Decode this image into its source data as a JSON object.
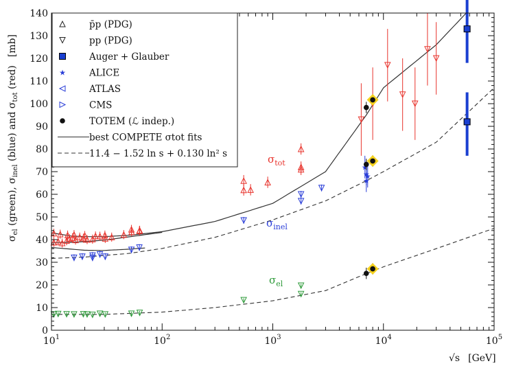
{
  "chart_data": {
    "type": "scatter",
    "title": "",
    "xlabel": "√s  [GeV]",
    "ylabel": "σel (green), σinel (blue) and σtot (red)  [mb]",
    "x_scale": "log",
    "xlim": [
      10,
      100000
    ],
    "ylim": [
      0,
      140
    ],
    "x_ticks": [
      {
        "value": 10,
        "base": "10",
        "exp": "1"
      },
      {
        "value": 100,
        "base": "10",
        "exp": "2"
      },
      {
        "value": 1000,
        "base": "10",
        "exp": "3"
      },
      {
        "value": 10000,
        "base": "10",
        "exp": "4"
      },
      {
        "value": 100000,
        "base": "10",
        "exp": "5"
      }
    ],
    "y_ticks": [
      "0",
      "10",
      "20",
      "30",
      "40",
      "50",
      "60",
      "70",
      "80",
      "90",
      "100",
      "110",
      "120",
      "130",
      "140"
    ],
    "ylabel_parts": {
      "a": "σ",
      "a_sub": "el",
      "b": " (green), σ",
      "b_sub": "inel",
      "c": " (blue) and σ",
      "c_sub": "tot",
      "d": " (red)",
      "unit": "[mb]"
    },
    "xlabel_parts": {
      "sqrt": "√s",
      "unit": "[GeV]"
    },
    "annotations": [
      {
        "id": "tot",
        "symbol": "σ",
        "sub": "tot",
        "color": "#e8332c",
        "x": 1000,
        "y": 75
      },
      {
        "id": "inel",
        "symbol": "σ",
        "sub": "inel",
        "color": "#2a3ed8",
        "x": 1000,
        "y": 46
      },
      {
        "id": "el",
        "symbol": "σ",
        "sub": "el",
        "color": "#2e9a3a",
        "x": 1000,
        "y": 23
      }
    ],
    "legend": [
      {
        "label": "p̄p (PDG)",
        "marker": "triangle-up-open",
        "color": "#222222"
      },
      {
        "label": "pp (PDG)",
        "marker": "triangle-down-open",
        "color": "#222222"
      },
      {
        "label": "Auger + Glauber",
        "marker": "square-filled",
        "color": "#1a3fd1"
      },
      {
        "label": "ALICE",
        "marker": "star",
        "color": "#2a3ed8"
      },
      {
        "label": "ATLAS",
        "marker": "triangle-left-open",
        "color": "#2a3ed8"
      },
      {
        "label": "CMS",
        "marker": "triangle-right-open",
        "color": "#2a3ed8"
      },
      {
        "label": "TOTEM (ℒ indep.)",
        "marker": "circle-filled",
        "color": "#111111"
      },
      {
        "label": "best COMPETE σtot fits",
        "marker": "line-solid",
        "color": "#333333"
      },
      {
        "label": "11.4 − 1.52 ln s + 0.130 ln² s",
        "marker": "line-dashed",
        "color": "#333333"
      }
    ],
    "curves": [
      {
        "name": "COMPETE fit σtot",
        "style": "solid",
        "points": [
          [
            10,
            43
          ],
          [
            15,
            41.6
          ],
          [
            20,
            41.3
          ],
          [
            30,
            41.3
          ],
          [
            50,
            41.9
          ],
          [
            100,
            43.5
          ],
          [
            300,
            48
          ],
          [
            1000,
            56
          ],
          [
            3000,
            70
          ],
          [
            7000,
            95
          ],
          [
            10000,
            107
          ],
          [
            30000,
            126
          ],
          [
            56000,
            140
          ]
        ]
      },
      {
        "name": "COMPETE fit σtot (pp branch)",
        "style": "solid",
        "points": [
          [
            10,
            38.7
          ],
          [
            15,
            38.8
          ],
          [
            20,
            39.1
          ],
          [
            30,
            39.8
          ],
          [
            50,
            41.2
          ],
          [
            100,
            43.2
          ]
        ]
      },
      {
        "name": "σinel fit",
        "style": "dashed",
        "points": [
          [
            10,
            31.7
          ],
          [
            20,
            32.3
          ],
          [
            50,
            33.9
          ],
          [
            100,
            36.1
          ],
          [
            300,
            41
          ],
          [
            1000,
            48.7
          ],
          [
            3000,
            57.1
          ],
          [
            7000,
            66
          ],
          [
            10000,
            70
          ],
          [
            30000,
            83
          ],
          [
            100000,
            107
          ]
        ]
      },
      {
        "name": "COMPETE σinel (low energy)",
        "style": "solid",
        "points": [
          [
            10,
            36.5
          ],
          [
            20,
            35.3
          ],
          [
            30,
            35.2
          ],
          [
            50,
            35.8
          ],
          [
            70,
            36.3
          ]
        ]
      },
      {
        "name": "σel fit",
        "style": "dashed",
        "points": [
          [
            10,
            7
          ],
          [
            30,
            7
          ],
          [
            100,
            8
          ],
          [
            300,
            10
          ],
          [
            1000,
            13
          ],
          [
            3000,
            17.5
          ],
          [
            7000,
            25
          ],
          [
            10000,
            28
          ],
          [
            30000,
            36
          ],
          [
            100000,
            45
          ]
        ]
      }
    ],
    "series": [
      {
        "name": "σtot pp/p̄p (PDG)",
        "color": "#e8332c",
        "marker": "triangle-open",
        "points": [
          [
            10.5,
            38.8
          ],
          [
            11.5,
            39.2
          ],
          [
            12.5,
            38.5
          ],
          [
            13.7,
            39.5
          ],
          [
            14.5,
            40.4
          ],
          [
            15.5,
            40.8
          ],
          [
            16.5,
            39.8
          ],
          [
            18,
            41.1
          ],
          [
            19.4,
            40.6
          ],
          [
            21,
            40.0
          ],
          [
            23.5,
            40.2
          ],
          [
            27.4,
            41.5
          ],
          [
            30.6,
            40.5
          ],
          [
            35,
            41.1
          ],
          [
            45,
            42.2
          ],
          [
            53,
            43.4
          ],
          [
            62.3,
            43.9
          ],
          [
            10.5,
            42.8
          ],
          [
            12,
            42.4
          ],
          [
            14,
            42.0
          ],
          [
            16,
            42.2
          ],
          [
            20,
            41.8
          ],
          [
            25,
            41.6
          ],
          [
            30.4,
            42.0
          ],
          [
            52.8,
            44.5
          ],
          [
            62.7,
            44.1
          ]
        ],
        "y_err": 2.0
      },
      {
        "name": "σtot SppS/Tevatron",
        "color": "#e8332c",
        "marker": "triangle-up-open",
        "points": [
          [
            546,
            61.9
          ],
          [
            546,
            66
          ],
          [
            630,
            62
          ],
          [
            900,
            65.3
          ],
          [
            1800,
            72
          ],
          [
            1800,
            80
          ],
          [
            1800,
            71
          ]
        ],
        "y_err": 2.5
      },
      {
        "name": "σtot cosmic-ray / high energy",
        "color": "#e8332c",
        "marker": "triangle-down-open",
        "points": [
          [
            6300,
            93
          ],
          [
            8000,
            100
          ],
          [
            10900,
            117
          ],
          [
            14900,
            104
          ],
          [
            19300,
            100
          ],
          [
            25000,
            124
          ],
          [
            30000,
            120
          ]
        ],
        "y_err": 16
      },
      {
        "name": "σinel pp/p̄p (PDG)",
        "color": "#2a3ed8",
        "marker": "triangle-down-open",
        "points": [
          [
            16,
            32
          ],
          [
            19,
            32.5
          ],
          [
            23.5,
            33
          ],
          [
            23.5,
            32
          ],
          [
            27.4,
            33.5
          ],
          [
            30.6,
            32.5
          ],
          [
            52.8,
            35.5
          ],
          [
            62.3,
            36.5
          ],
          [
            546,
            48.5
          ],
          [
            1800,
            57
          ],
          [
            1800,
            60
          ],
          [
            2760,
            62.8
          ]
        ],
        "y_err": 1.5
      },
      {
        "name": "σinel LHC (ALICE/ATLAS/CMS)",
        "color": "#2a3ed8",
        "marker": "star",
        "points": [
          [
            7000,
            69
          ],
          [
            7000,
            66
          ],
          [
            7200,
            68
          ],
          [
            6800,
            72
          ]
        ],
        "y_err": 5
      },
      {
        "name": "σel pp/p̄p (PDG)",
        "color": "#2e9a3a",
        "marker": "triangle-down-open",
        "points": [
          [
            10.5,
            7
          ],
          [
            11.5,
            7.2
          ],
          [
            13.7,
            7.1
          ],
          [
            16,
            7.0
          ],
          [
            19.4,
            7.1
          ],
          [
            21,
            7.0
          ],
          [
            23.5,
            6.8
          ],
          [
            27.4,
            7.3
          ],
          [
            30.6,
            7.0
          ],
          [
            52.8,
            7.3
          ],
          [
            62.7,
            7.7
          ],
          [
            546,
            13.3
          ],
          [
            1800,
            16
          ],
          [
            1800,
            19.7
          ]
        ],
        "y_err": 0.8
      },
      {
        "name": "Auger + Glauber",
        "color": "#1a3fd1",
        "marker": "square-filled",
        "points": [
          [
            57000,
            133
          ],
          [
            57000,
            92
          ]
        ],
        "y_err_lo": [
          15,
          15
        ],
        "y_err_hi": [
          17,
          13
        ]
      },
      {
        "name": "TOTEM (ℒ indep.)",
        "color": "#111111",
        "marker": "circle-filled",
        "points": [
          [
            7000,
            98.3
          ],
          [
            8000,
            101.7
          ],
          [
            7000,
            73.2
          ],
          [
            8000,
            74.7
          ],
          [
            7000,
            25.1
          ],
          [
            8000,
            27.1
          ]
        ],
        "y_err": 2.5
      },
      {
        "name": "TOTEM 8 TeV highlight",
        "color": "#f5d21e",
        "marker": "halo",
        "points": [
          [
            8000,
            101.7
          ],
          [
            8000,
            74.7
          ],
          [
            8000,
            27.1
          ]
        ]
      }
    ]
  }
}
